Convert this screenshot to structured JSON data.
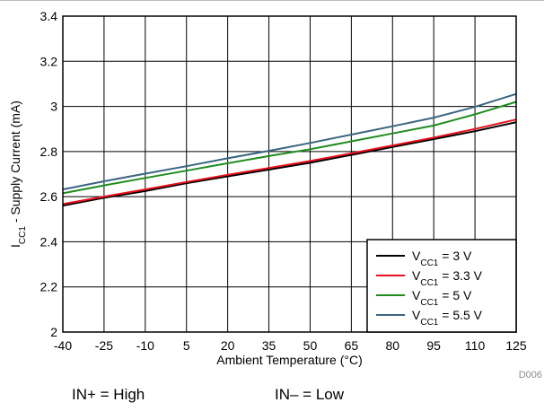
{
  "chart_data": {
    "type": "line",
    "title": "",
    "xlabel": "Ambient Temperature (°C)",
    "ylabel": "ICC1 - Supply Current (mA)",
    "ylabel_main": "I",
    "ylabel_sub": "CC1",
    "ylabel_rest": " - Supply Current (mA)",
    "xlim": [
      -40,
      125
    ],
    "ylim": [
      2,
      3.4
    ],
    "xticks": [
      -40,
      -25,
      -10,
      5,
      20,
      35,
      50,
      65,
      80,
      95,
      110,
      125
    ],
    "yticks": [
      2,
      2.2,
      2.4,
      2.6,
      2.8,
      3,
      3.2,
      3.4
    ],
    "ytick_labels": [
      "2",
      "2.2",
      "2.4",
      "2.6",
      "2.8",
      "3",
      "3.2",
      "3.4"
    ],
    "grid": true,
    "legend_position": "bottom-right",
    "x": [
      -40,
      125
    ],
    "series": [
      {
        "name": "VCC1 = 3 V",
        "name_main": "V",
        "name_sub": "CC1",
        "name_rest": " = 3 V",
        "color": "#000000",
        "points": [
          [
            -40,
            2.56
          ],
          [
            -25,
            2.595
          ],
          [
            -10,
            2.625
          ],
          [
            5,
            2.66
          ],
          [
            20,
            2.69
          ],
          [
            35,
            2.72
          ],
          [
            50,
            2.75
          ],
          [
            65,
            2.785
          ],
          [
            80,
            2.82
          ],
          [
            95,
            2.855
          ],
          [
            110,
            2.89
          ],
          [
            125,
            2.93
          ]
        ]
      },
      {
        "name": "VCC1 = 3.3 V",
        "name_main": "V",
        "name_sub": "CC1",
        "name_rest": " = 3.3 V",
        "color": "#e8101c",
        "points": [
          [
            -40,
            2.567
          ],
          [
            -25,
            2.6
          ],
          [
            -10,
            2.632
          ],
          [
            5,
            2.665
          ],
          [
            20,
            2.697
          ],
          [
            35,
            2.727
          ],
          [
            50,
            2.758
          ],
          [
            65,
            2.792
          ],
          [
            80,
            2.827
          ],
          [
            95,
            2.862
          ],
          [
            110,
            2.9
          ],
          [
            125,
            2.942
          ]
        ]
      },
      {
        "name": "VCC1 = 5 V",
        "name_main": "V",
        "name_sub": "CC1",
        "name_rest": " = 5 V",
        "color": "#1e8c1e",
        "points": [
          [
            -40,
            2.615
          ],
          [
            -25,
            2.65
          ],
          [
            -10,
            2.683
          ],
          [
            5,
            2.715
          ],
          [
            20,
            2.748
          ],
          [
            35,
            2.78
          ],
          [
            50,
            2.81
          ],
          [
            65,
            2.845
          ],
          [
            80,
            2.88
          ],
          [
            95,
            2.915
          ],
          [
            110,
            2.965
          ],
          [
            125,
            3.02
          ]
        ]
      },
      {
        "name": "VCC1 = 5.5 V",
        "name_main": "V",
        "name_sub": "CC1",
        "name_rest": " = 5.5 V",
        "color": "#3a6580",
        "points": [
          [
            -40,
            2.632
          ],
          [
            -25,
            2.668
          ],
          [
            -10,
            2.702
          ],
          [
            5,
            2.735
          ],
          [
            20,
            2.77
          ],
          [
            35,
            2.803
          ],
          [
            50,
            2.838
          ],
          [
            65,
            2.875
          ],
          [
            80,
            2.912
          ],
          [
            95,
            2.95
          ],
          [
            110,
            2.998
          ],
          [
            125,
            3.055
          ]
        ]
      }
    ]
  },
  "figure_id": "D006",
  "conditions": {
    "in_plus": "IN+ = High",
    "in_minus": "IN– = Low"
  }
}
